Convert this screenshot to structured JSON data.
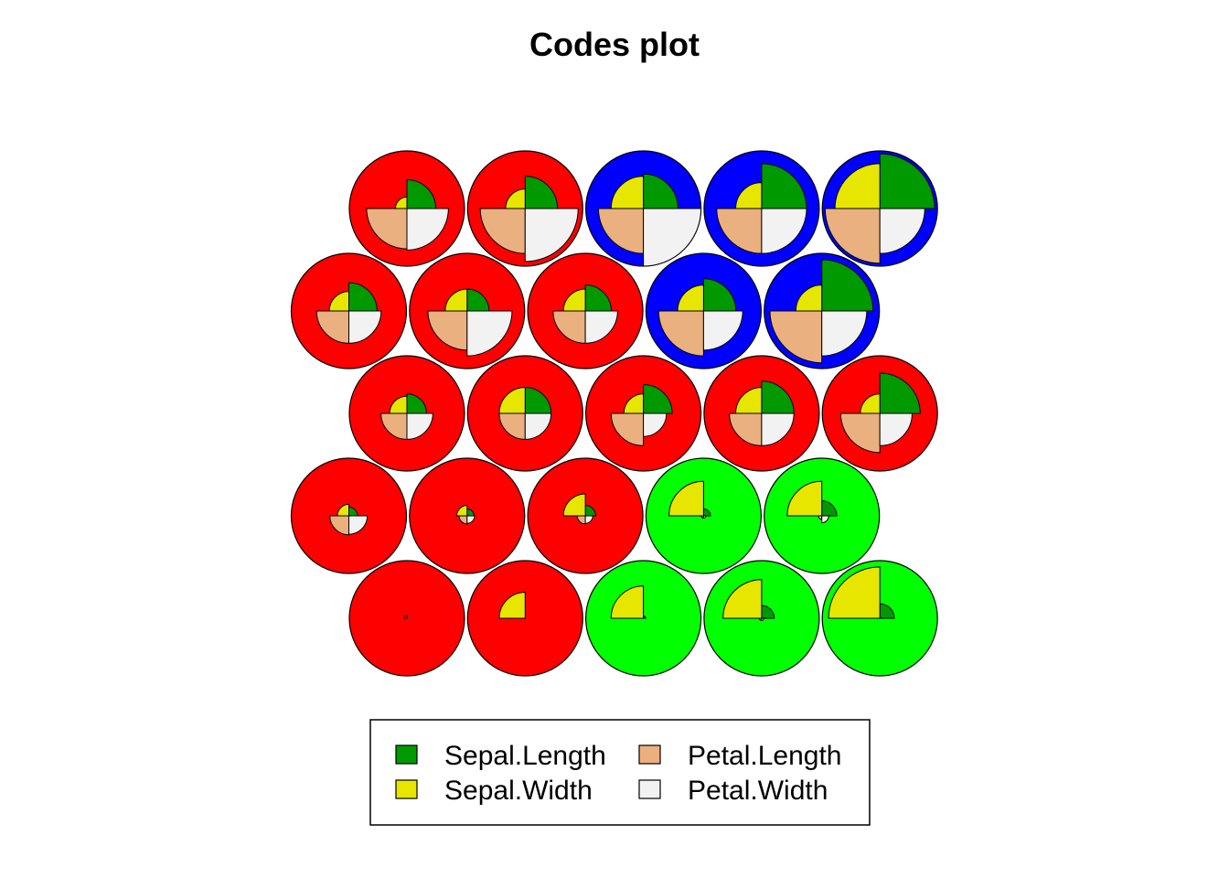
{
  "chart_data": {
    "type": "som-codes",
    "title": "Codes plot",
    "grid": {
      "rows": 5,
      "cols": 5,
      "topology": "hexagonal"
    },
    "variables": [
      {
        "name": "Sepal.Length",
        "color": "#009900"
      },
      {
        "name": "Sepal.Width",
        "color": "#e6e600"
      },
      {
        "name": "Petal.Length",
        "color": "#ebb07f"
      },
      {
        "name": "Petal.Width",
        "color": "#f2f2f2"
      }
    ],
    "cluster_colors": {
      "red": "#ff0000",
      "blue": "#0000ff",
      "green": "#00ff00"
    },
    "units": [
      {
        "row": 0,
        "col": 0,
        "cluster": "red",
        "values": [
          0.0,
          0.04,
          0.0,
          0.0
        ]
      },
      {
        "row": 0,
        "col": 1,
        "cluster": "red",
        "values": [
          0.0,
          0.45,
          0.0,
          0.0
        ]
      },
      {
        "row": 0,
        "col": 2,
        "cluster": "green",
        "values": [
          0.04,
          0.56,
          0.0,
          0.0
        ]
      },
      {
        "row": 0,
        "col": 3,
        "cluster": "green",
        "values": [
          0.22,
          0.67,
          0.04,
          0.04
        ]
      },
      {
        "row": 0,
        "col": 4,
        "cluster": "green",
        "values": [
          0.25,
          0.89,
          0.0,
          0.0
        ]
      },
      {
        "row": 1,
        "col": 0,
        "cluster": "red",
        "values": [
          0.15,
          0.2,
          0.33,
          0.32
        ]
      },
      {
        "row": 1,
        "col": 1,
        "cluster": "red",
        "values": [
          0.12,
          0.18,
          0.14,
          0.13
        ]
      },
      {
        "row": 1,
        "col": 2,
        "cluster": "red",
        "values": [
          0.18,
          0.38,
          0.14,
          0.13
        ]
      },
      {
        "row": 1,
        "col": 3,
        "cluster": "green",
        "values": [
          0.12,
          0.6,
          0.04,
          0.04
        ]
      },
      {
        "row": 1,
        "col": 4,
        "cluster": "green",
        "values": [
          0.26,
          0.6,
          0.06,
          0.12
        ]
      },
      {
        "row": 2,
        "col": 0,
        "cluster": "red",
        "values": [
          0.34,
          0.3,
          0.45,
          0.45
        ]
      },
      {
        "row": 2,
        "col": 1,
        "cluster": "red",
        "values": [
          0.45,
          0.45,
          0.45,
          0.45
        ]
      },
      {
        "row": 2,
        "col": 2,
        "cluster": "red",
        "values": [
          0.5,
          0.34,
          0.56,
          0.4
        ]
      },
      {
        "row": 2,
        "col": 3,
        "cluster": "red",
        "values": [
          0.56,
          0.45,
          0.56,
          0.56
        ]
      },
      {
        "row": 2,
        "col": 4,
        "cluster": "red",
        "values": [
          0.7,
          0.34,
          0.68,
          0.56
        ]
      },
      {
        "row": 3,
        "col": 0,
        "cluster": "red",
        "values": [
          0.49,
          0.34,
          0.56,
          0.56
        ]
      },
      {
        "row": 3,
        "col": 1,
        "cluster": "red",
        "values": [
          0.38,
          0.38,
          0.68,
          0.78
        ]
      },
      {
        "row": 3,
        "col": 2,
        "cluster": "red",
        "values": [
          0.45,
          0.38,
          0.56,
          0.56
        ]
      },
      {
        "row": 3,
        "col": 3,
        "cluster": "blue",
        "values": [
          0.56,
          0.45,
          0.78,
          0.68
        ]
      },
      {
        "row": 3,
        "col": 4,
        "cluster": "blue",
        "values": [
          0.89,
          0.45,
          0.9,
          0.78
        ]
      },
      {
        "row": 4,
        "col": 0,
        "cluster": "red",
        "values": [
          0.5,
          0.2,
          0.7,
          0.72
        ]
      },
      {
        "row": 4,
        "col": 1,
        "cluster": "red",
        "values": [
          0.56,
          0.34,
          0.78,
          0.92
        ]
      },
      {
        "row": 4,
        "col": 2,
        "cluster": "blue",
        "values": [
          0.6,
          0.56,
          0.78,
          1.0
        ]
      },
      {
        "row": 4,
        "col": 3,
        "cluster": "blue",
        "values": [
          0.78,
          0.45,
          0.78,
          0.78
        ]
      },
      {
        "row": 4,
        "col": 4,
        "cluster": "blue",
        "values": [
          0.95,
          0.78,
          0.95,
          0.78
        ]
      }
    ],
    "legend": {
      "position": "bottom",
      "columns": 2
    }
  }
}
